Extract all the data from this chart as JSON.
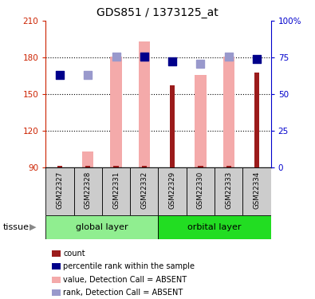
{
  "title": "GDS851 / 1373125_at",
  "samples": [
    "GSM22327",
    "GSM22328",
    "GSM22331",
    "GSM22332",
    "GSM22329",
    "GSM22330",
    "GSM22333",
    "GSM22334"
  ],
  "group1_label": "global layer",
  "group2_label": "orbital layer",
  "tissue_label": "tissue",
  "ylim": [
    90,
    210
  ],
  "yticks": [
    90,
    120,
    150,
    180,
    210
  ],
  "right_yticks": [
    0,
    25,
    50,
    75,
    100
  ],
  "right_ylim": [
    0,
    100
  ],
  "red_bars": [
    91,
    91,
    91,
    91,
    157,
    91,
    91,
    168
  ],
  "pink_bars": [
    null,
    103,
    181,
    193,
    null,
    166,
    181,
    null
  ],
  "blue_dots_y": [
    166,
    null,
    null,
    181,
    177,
    null,
    null,
    179
  ],
  "lavender_dots_y": [
    null,
    166,
    181,
    181,
    null,
    175,
    181,
    null
  ],
  "red_color": "#9B1B1B",
  "pink_color": "#F4AAAA",
  "blue_color": "#00008B",
  "lavender_color": "#9999CC",
  "green_color_light": "#90EE90",
  "green_color_bright": "#22DD22",
  "grey_bg": "#CCCCCC",
  "left_axis_color": "#CC2200",
  "right_axis_color": "#0000CC",
  "base": 90,
  "dot_size": 45
}
